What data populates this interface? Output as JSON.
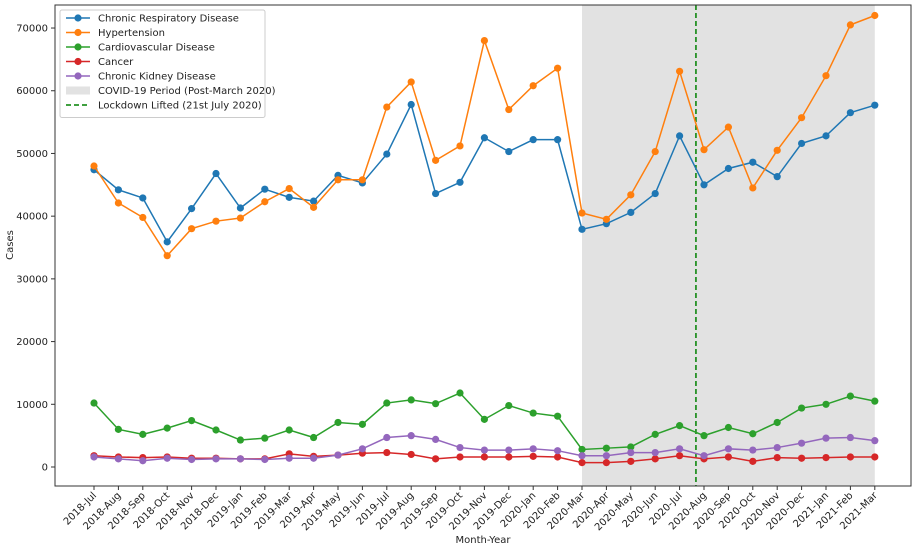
{
  "chart_data": {
    "type": "line",
    "title": "",
    "xlabel": "Month-Year",
    "ylabel": "Cases",
    "ylim": [
      -2800,
      75500
    ],
    "yticks": [
      0,
      10000,
      20000,
      30000,
      40000,
      50000,
      60000,
      70000
    ],
    "grid": false,
    "legend_position": "top-left",
    "categories": [
      "2018-Jul",
      "2018-Aug",
      "2018-Sep",
      "2018-Oct",
      "2018-Nov",
      "2018-Dec",
      "2019-Jan",
      "2019-Feb",
      "2019-Mar",
      "2019-Apr",
      "2019-May",
      "2019-Jun",
      "2019-Jul",
      "2019-Aug",
      "2019-Sep",
      "2019-Oct",
      "2019-Nov",
      "2019-Dec",
      "2020-Jan",
      "2020-Feb",
      "2020-Mar",
      "2020-Apr",
      "2020-May",
      "2020-Jun",
      "2020-Jul",
      "2020-Aug",
      "2020-Sep",
      "2020-Oct",
      "2020-Nov",
      "2020-Dec",
      "2021-Jan",
      "2021-Feb",
      "2021-Mar"
    ],
    "series": [
      {
        "name": "Chronic Respiratory Disease",
        "color": "#1f77b4",
        "values": [
          47400,
          44200,
          42900,
          35900,
          41200,
          46800,
          41300,
          44300,
          43000,
          42400,
          46500,
          45300,
          49900,
          57800,
          43600,
          45400,
          52500,
          50300,
          52200,
          52200,
          37900,
          38800,
          40600,
          43600,
          52800,
          45000,
          47600,
          48600,
          46300,
          51600,
          52800,
          56500,
          57700
        ]
      },
      {
        "name": "Hypertension",
        "color": "#ff7f0e",
        "values": [
          48000,
          42100,
          39800,
          33700,
          38000,
          39200,
          39700,
          42300,
          44400,
          41400,
          45800,
          45800,
          57400,
          61400,
          48900,
          51200,
          68000,
          57000,
          60800,
          63600,
          40500,
          39500,
          43400,
          50300,
          63100,
          50600,
          54200,
          44500,
          50500,
          55700,
          62400,
          70500,
          72000
        ]
      },
      {
        "name": "Cardiovascular Disease",
        "color": "#2ca02c",
        "values": [
          10200,
          6000,
          5200,
          6200,
          7400,
          5900,
          4300,
          4600,
          5900,
          4700,
          7100,
          6800,
          10200,
          10700,
          10100,
          11800,
          7600,
          9800,
          8600,
          8100,
          2800,
          3000,
          3200,
          5200,
          6600,
          5000,
          6300,
          5300,
          7100,
          9400,
          10000,
          11300,
          10500
        ]
      },
      {
        "name": "Cancer",
        "color": "#d62728",
        "values": [
          1800,
          1600,
          1500,
          1600,
          1400,
          1400,
          1300,
          1300,
          2100,
          1700,
          1900,
          2200,
          2300,
          2000,
          1300,
          1600,
          1600,
          1600,
          1700,
          1600,
          700,
          700,
          900,
          1300,
          1800,
          1300,
          1600,
          900,
          1500,
          1400,
          1500,
          1600,
          1600
        ]
      },
      {
        "name": "Chronic Kidney Disease",
        "color": "#9467bd",
        "values": [
          1600,
          1300,
          1000,
          1400,
          1200,
          1300,
          1300,
          1200,
          1400,
          1400,
          1900,
          2900,
          4700,
          5000,
          4400,
          3100,
          2700,
          2700,
          2900,
          2600,
          1800,
          1800,
          2300,
          2300,
          2900,
          1800,
          2900,
          2700,
          3100,
          3800,
          4600,
          4700,
          4200
        ]
      }
    ],
    "annotations": [
      {
        "type": "span",
        "label": "COVID-19 Period (Post-March 2020)",
        "from": "2020-Mar",
        "to": "2021-Mar",
        "color": "#e2e2e2"
      },
      {
        "type": "vline",
        "label": "Lockdown Lifted (21st July 2020)",
        "at_index": 24.67,
        "color": "#008000",
        "style": "dashed"
      }
    ]
  }
}
